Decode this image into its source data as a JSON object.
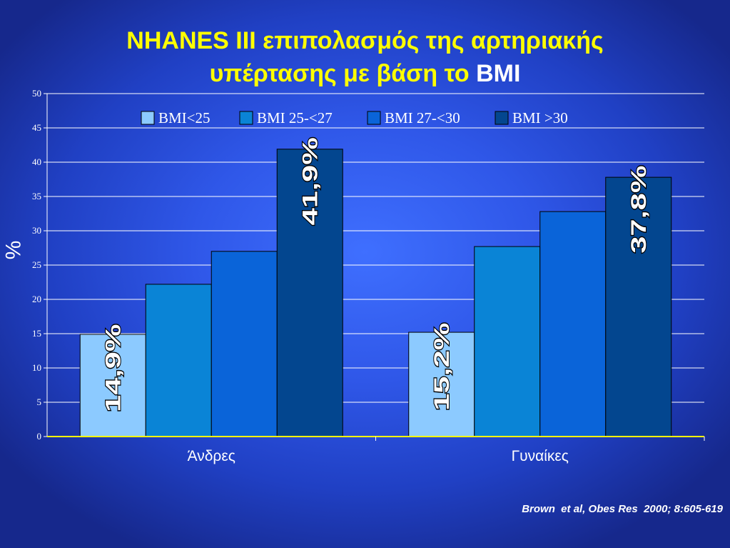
{
  "slide": {
    "title_line1": "NHANES III επιπολασμός της αρτηριακής",
    "title_line2": "υπέρτασης με βάση το",
    "title_accent": "BMI",
    "citation": "Brown  et al, Obes Res  2000; 8:605-619"
  },
  "chart_data": {
    "type": "bar",
    "ylabel": "%",
    "ylim": [
      0,
      50
    ],
    "yticks": [
      0,
      5,
      10,
      15,
      20,
      25,
      30,
      35,
      40,
      45,
      50
    ],
    "categories": [
      "Άνδρες",
      "Γυναίκες"
    ],
    "grid": true,
    "legend_position": "top",
    "series": [
      {
        "name": "BMI<25",
        "color": "#8ccaff",
        "values": [
          14.9,
          15.2
        ]
      },
      {
        "name": "BMI 25-<27",
        "color": "#0a84d6",
        "values": [
          22.2,
          27.7
        ]
      },
      {
        "name": "BMI 27-<30",
        "color": "#0a64d9",
        "values": [
          27.0,
          32.8
        ]
      },
      {
        "name": "BMI >30",
        "color": "#03468f",
        "values": [
          41.9,
          37.8
        ]
      }
    ],
    "annotations": [
      {
        "text": "14,9%",
        "category": 0,
        "series": 0
      },
      {
        "text": "41,9%",
        "category": 0,
        "series": 3
      },
      {
        "text": "15,2%",
        "category": 1,
        "series": 0
      },
      {
        "text": "37,8%",
        "category": 1,
        "series": 3
      }
    ]
  }
}
